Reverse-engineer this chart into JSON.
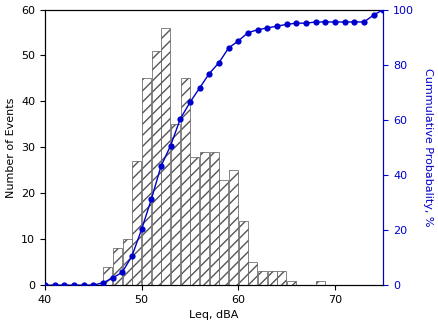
{
  "title": "",
  "xlabel": "Leq, dBA",
  "ylabel_left": "Number of Events",
  "ylabel_right": "Cummulative Probabality, %",
  "xlim": [
    40,
    75
  ],
  "ylim_left": [
    0,
    60
  ],
  "ylim_right": [
    0,
    100
  ],
  "xticks": [
    40,
    50,
    60,
    70
  ],
  "yticks_left": [
    0,
    10,
    20,
    30,
    40,
    50,
    60
  ],
  "yticks_right": [
    0,
    20,
    40,
    60,
    80,
    100
  ],
  "bin_left": [
    46,
    47,
    48,
    49,
    50,
    51,
    52,
    53,
    54,
    55,
    56,
    57,
    58,
    59,
    60,
    61,
    62,
    63,
    64,
    65,
    66,
    67,
    68,
    69,
    70,
    71,
    72,
    73
  ],
  "bin_counts": [
    4,
    8,
    10,
    27,
    45,
    51,
    56,
    35,
    45,
    28,
    29,
    29,
    23,
    25,
    14,
    5,
    3,
    3,
    3,
    1,
    0,
    0,
    1,
    0,
    0,
    0,
    0,
    0
  ],
  "cum_x": [
    40,
    41,
    42,
    43,
    44,
    45,
    46,
    47,
    48,
    49,
    50,
    51,
    52,
    53,
    54,
    55,
    56,
    57,
    58,
    59,
    60,
    61,
    62,
    63,
    64,
    65,
    66,
    67,
    68,
    69,
    70,
    71,
    72,
    73,
    74,
    75
  ],
  "cum_y": [
    0,
    0,
    0,
    0,
    0,
    0,
    0.86,
    2.58,
    4.72,
    10.56,
    20.26,
    31.12,
    43.13,
    50.64,
    60.34,
    66.31,
    71.55,
    76.78,
    80.74,
    86.05,
    88.63,
    91.59,
    92.67,
    93.32,
    93.97,
    94.62,
    95.06,
    95.06,
    95.49,
    95.49,
    95.49,
    95.49,
    95.49,
    95.49,
    98.0,
    100
  ],
  "line_color": "#0000cc",
  "dot_color": "#0000cc",
  "background_color": "#ffffff",
  "hatch": "///",
  "bar_edge_color": "#555555",
  "bar_linewidth": 0.5
}
